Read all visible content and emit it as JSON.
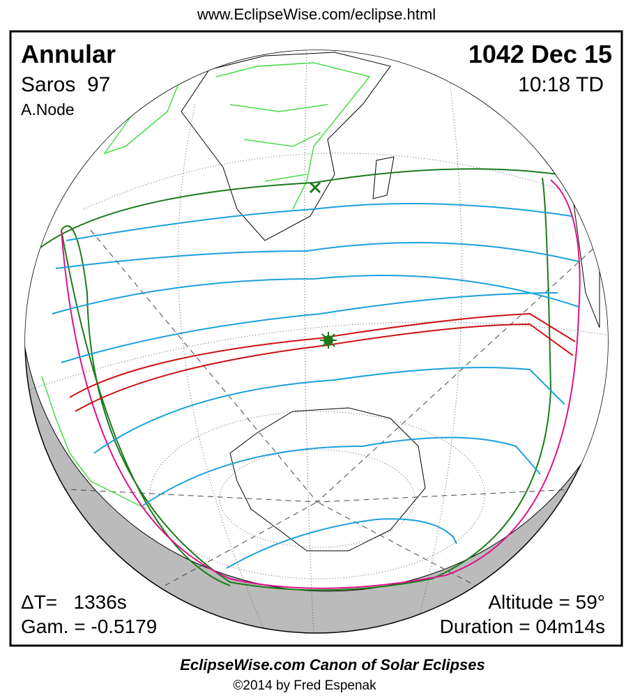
{
  "header": {
    "url": "www.EclipseWise.com/eclipse.html"
  },
  "panel": {
    "eclipse_type": "Annular",
    "date": "1042 Dec 15",
    "saros": "Saros  97",
    "time": "10:18 TD",
    "node": "A.Node",
    "delta_t": "ΔT=   1336s",
    "gamma": "Gam. = -0.5179",
    "altitude": "Altitude = 59°",
    "duration": "Duration = 04m14s"
  },
  "footer": {
    "title": "EclipseWise.com Canon of Solar Eclipses",
    "copyright": "©2014 by Fred Espenak"
  }
}
